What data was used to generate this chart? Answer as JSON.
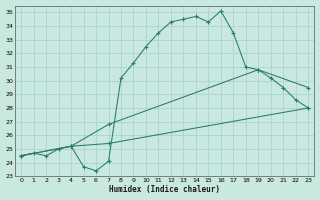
{
  "bg_color": "#c8e8e0",
  "grid_color": "#aad4cc",
  "line_color": "#2a7a6a",
  "xlabel": "Humidex (Indice chaleur)",
  "xlim": [
    -0.5,
    23.5
  ],
  "ylim": [
    23,
    35.5
  ],
  "xticks": [
    0,
    1,
    2,
    3,
    4,
    5,
    6,
    7,
    8,
    9,
    10,
    11,
    12,
    13,
    14,
    15,
    16,
    17,
    18,
    19,
    20,
    21,
    22,
    23
  ],
  "yticks": [
    23,
    24,
    25,
    26,
    27,
    28,
    29,
    30,
    31,
    32,
    33,
    34,
    35
  ],
  "curve1_x": [
    0,
    1,
    2,
    3,
    4,
    5,
    6,
    7,
    8,
    9,
    10,
    11,
    12,
    13,
    14,
    15,
    16,
    17,
    18,
    19,
    20,
    21,
    22,
    23
  ],
  "curve1_y": [
    24.5,
    24.7,
    24.5,
    25.0,
    25.2,
    23.7,
    23.4,
    24.1,
    30.2,
    31.3,
    32.5,
    33.5,
    34.3,
    34.5,
    34.7,
    34.3,
    35.1,
    33.5,
    31.0,
    30.8,
    30.2,
    29.5,
    28.6,
    28.0
  ],
  "curve2_x": [
    0,
    4,
    7,
    19,
    23
  ],
  "curve2_y": [
    24.5,
    25.2,
    26.8,
    30.8,
    29.5
  ],
  "curve3_x": [
    0,
    4,
    7,
    23
  ],
  "curve3_y": [
    24.5,
    25.2,
    25.4,
    28.0
  ]
}
